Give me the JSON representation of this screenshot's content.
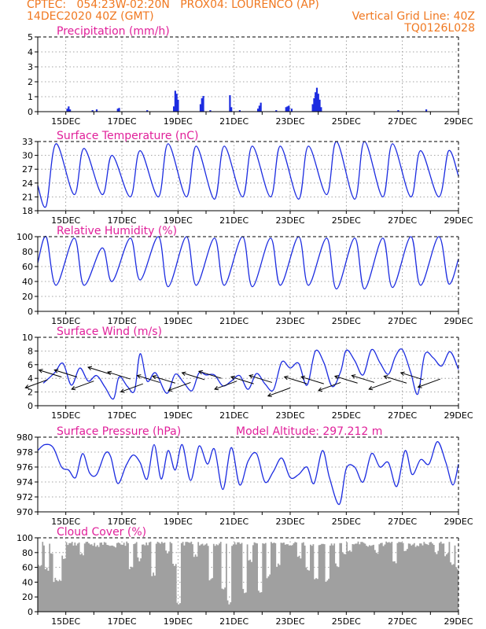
{
  "header": {
    "line1_left": "CPTEC:   054:23W-02:20N   PROX04: LOURENCO (AP)",
    "line2_left": "14DEC2020 40Z (GMT)",
    "line2_right": "Vertical Grid Line: 40Z",
    "line3_right": "TQ0126L028"
  },
  "colors": {
    "header": "#f07820",
    "panel_title": "#e0209a",
    "series": "#1c2ce0",
    "cloud": "#a0a0a0"
  },
  "x_ticks": [
    "15DEC",
    "17DEC",
    "19DEC",
    "21DEC",
    "23DEC",
    "25DEC",
    "27DEC",
    "29DEC"
  ],
  "chart_data": [
    {
      "type": "bar",
      "title": "Precipitation (mm/h)",
      "ylim": [
        0,
        5
      ],
      "yticks": [
        "0",
        "1",
        "2",
        "3",
        "4",
        "5"
      ],
      "grid": true,
      "x_unit": "days since 14DEC2020 00Z",
      "xlim": [
        0,
        15
      ],
      "points": [
        [
          1.05,
          0.2
        ],
        [
          1.1,
          0.35
        ],
        [
          1.15,
          0.15
        ],
        [
          1.95,
          0.1
        ],
        [
          2.1,
          0.15
        ],
        [
          2.85,
          0.2
        ],
        [
          2.9,
          0.25
        ],
        [
          3.9,
          0.1
        ],
        [
          4.85,
          0.35
        ],
        [
          4.9,
          1.4
        ],
        [
          4.95,
          1.2
        ],
        [
          5.0,
          0.8
        ],
        [
          5.8,
          0.5
        ],
        [
          5.85,
          0.9
        ],
        [
          5.9,
          1.05
        ],
        [
          6.15,
          0.1
        ],
        [
          6.85,
          1.1
        ],
        [
          6.9,
          0.3
        ],
        [
          7.2,
          0.1
        ],
        [
          7.85,
          0.2
        ],
        [
          7.9,
          0.4
        ],
        [
          7.95,
          0.6
        ],
        [
          8.5,
          0.1
        ],
        [
          8.85,
          0.3
        ],
        [
          8.9,
          0.35
        ],
        [
          8.95,
          0.4
        ],
        [
          9.05,
          0.2
        ],
        [
          9.8,
          0.5
        ],
        [
          9.85,
          0.9
        ],
        [
          9.9,
          1.3
        ],
        [
          9.95,
          1.6
        ],
        [
          10.0,
          1.2
        ],
        [
          10.05,
          0.8
        ],
        [
          10.1,
          0.3
        ],
        [
          12.85,
          0.1
        ],
        [
          13.85,
          0.15
        ]
      ]
    },
    {
      "type": "line",
      "title": "Surface Temperature (nC)",
      "ylim": [
        18,
        33
      ],
      "yticks": [
        "18",
        "21",
        "24",
        "27",
        "30",
        "33"
      ],
      "grid": true,
      "days_x": [
        0.65,
        1.65,
        2.65,
        3.65,
        4.65,
        5.65,
        6.65,
        7.65,
        8.65,
        9.65,
        10.65,
        11.65,
        12.65,
        13.65,
        14.65
      ],
      "days_max": [
        32.5,
        31.5,
        30,
        31,
        32.5,
        32,
        32,
        32,
        32,
        32,
        33,
        33,
        32.5,
        31,
        31
      ],
      "days_min": [
        19,
        21.5,
        21.5,
        21,
        21,
        21,
        20.5,
        21,
        21,
        20.5,
        21.5,
        20.5,
        21,
        21,
        21
      ]
    },
    {
      "type": "line",
      "title": "Relative Humidity (%)",
      "ylim": [
        0,
        100
      ],
      "yticks": [
        "0",
        "20",
        "40",
        "60",
        "80",
        "100"
      ],
      "grid": true,
      "days_x": [
        0.65,
        1.65,
        2.65,
        3.65,
        4.65,
        5.65,
        6.65,
        7.65,
        8.65,
        9.65,
        10.65,
        11.65,
        12.65,
        13.65,
        14.65
      ],
      "days_min": [
        35,
        35,
        40,
        42,
        33,
        35,
        35,
        33,
        35,
        35,
        30,
        30,
        32,
        35,
        37
      ],
      "days_max": [
        100,
        98,
        85,
        98,
        100,
        100,
        98,
        100,
        98,
        100,
        98,
        98,
        98,
        100,
        100
      ]
    },
    {
      "type": "line",
      "title": "Surface Wind (m/s)",
      "ylim": [
        0,
        10
      ],
      "yticks": [
        "0",
        "2",
        "4",
        "6",
        "8",
        "10"
      ],
      "grid": true,
      "speed": [
        [
          0.2,
          3.3
        ],
        [
          0.6,
          4.8
        ],
        [
          0.9,
          6.2
        ],
        [
          1.2,
          3.0
        ],
        [
          1.5,
          5.5
        ],
        [
          1.8,
          3.6
        ],
        [
          2.1,
          4.4
        ],
        [
          2.4,
          2.7
        ],
        [
          2.7,
          1.0
        ],
        [
          2.9,
          4.2
        ],
        [
          3.2,
          2.8
        ],
        [
          3.45,
          2.2
        ],
        [
          3.65,
          7.6
        ],
        [
          3.9,
          3.6
        ],
        [
          4.2,
          4.8
        ],
        [
          4.6,
          1.8
        ],
        [
          4.9,
          4.6
        ],
        [
          5.2,
          3.4
        ],
        [
          5.5,
          2.2
        ],
        [
          5.75,
          4.8
        ],
        [
          6.0,
          4.5
        ],
        [
          6.3,
          4.5
        ],
        [
          6.6,
          2.9
        ],
        [
          6.9,
          3.6
        ],
        [
          7.2,
          4.4
        ],
        [
          7.5,
          2.4
        ],
        [
          7.8,
          4.7
        ],
        [
          8.1,
          3.2
        ],
        [
          8.4,
          2.3
        ],
        [
          8.7,
          6.4
        ],
        [
          9.0,
          5.5
        ],
        [
          9.3,
          6.2
        ],
        [
          9.6,
          3.0
        ],
        [
          9.9,
          8.0
        ],
        [
          10.2,
          6.3
        ],
        [
          10.5,
          2.8
        ],
        [
          10.8,
          5.0
        ],
        [
          11.0,
          8.1
        ],
        [
          11.3,
          6.6
        ],
        [
          11.6,
          4.5
        ],
        [
          11.9,
          8.2
        ],
        [
          12.2,
          6.3
        ],
        [
          12.5,
          4.6
        ],
        [
          12.75,
          7.2
        ],
        [
          13.0,
          8.2
        ],
        [
          13.3,
          4.8
        ],
        [
          13.55,
          1.7
        ],
        [
          13.8,
          7.5
        ],
        [
          14.1,
          7.0
        ],
        [
          14.4,
          5.8
        ],
        [
          14.7,
          7.9
        ],
        [
          15.0,
          5.3
        ]
      ],
      "barb_x": [
        0.35,
        0.85,
        1.4,
        2.0,
        2.6,
        3.3,
        3.75,
        4.35,
        4.9,
        5.45,
        5.95,
        6.55,
        7.1,
        7.7,
        8.35,
        9.0,
        9.6,
        10.2,
        10.8,
        11.4,
        12.0,
        12.6,
        13.15,
        13.75,
        14.35
      ],
      "barb_y": [
        3.8,
        4.2,
        4.2,
        3.6,
        4.6,
        3.9,
        3.2,
        3.4,
        3.3,
        3.4,
        3.8,
        4.0,
        3.6,
        3.2,
        3.4,
        2.6,
        3.2,
        3.2,
        3.4,
        3.3,
        3.4,
        3.6,
        3.3,
        3.8,
        3.9
      ]
    },
    {
      "type": "line",
      "title": "Surface Pressure (hPa)",
      "annotation": "Model Altitude: 297.212 m",
      "ylim": [
        970,
        980
      ],
      "yticks": [
        "970",
        "972",
        "974",
        "976",
        "978",
        "980"
      ],
      "grid": true,
      "points": [
        [
          0.0,
          978.2
        ],
        [
          0.25,
          979.0
        ],
        [
          0.55,
          978.6
        ],
        [
          0.85,
          976.0
        ],
        [
          1.1,
          975.6
        ],
        [
          1.35,
          974.6
        ],
        [
          1.6,
          977.8
        ],
        [
          1.85,
          975.2
        ],
        [
          2.1,
          975.0
        ],
        [
          2.4,
          977.8
        ],
        [
          2.6,
          977.4
        ],
        [
          2.85,
          973.8
        ],
        [
          3.15,
          976.2
        ],
        [
          3.4,
          977.6
        ],
        [
          3.65,
          976.6
        ],
        [
          3.9,
          974.4
        ],
        [
          4.15,
          979.0
        ],
        [
          4.4,
          974.4
        ],
        [
          4.65,
          978.2
        ],
        [
          4.9,
          975.6
        ],
        [
          5.15,
          979.0
        ],
        [
          5.45,
          974.2
        ],
        [
          5.75,
          978.8
        ],
        [
          6.05,
          976.4
        ],
        [
          6.3,
          978.4
        ],
        [
          6.6,
          973.0
        ],
        [
          6.9,
          978.6
        ],
        [
          7.2,
          973.6
        ],
        [
          7.5,
          976.8
        ],
        [
          7.8,
          977.8
        ],
        [
          8.1,
          974.0
        ],
        [
          8.4,
          975.4
        ],
        [
          8.7,
          977.2
        ],
        [
          9.0,
          974.6
        ],
        [
          9.3,
          975.0
        ],
        [
          9.6,
          976.0
        ],
        [
          9.85,
          973.8
        ],
        [
          10.15,
          978.2
        ],
        [
          10.4,
          974.6
        ],
        [
          10.75,
          971.0
        ],
        [
          11.0,
          975.8
        ],
        [
          11.3,
          976.0
        ],
        [
          11.6,
          974.0
        ],
        [
          11.9,
          977.8
        ],
        [
          12.2,
          976.0
        ],
        [
          12.5,
          976.6
        ],
        [
          12.8,
          973.4
        ],
        [
          13.1,
          978.2
        ],
        [
          13.35,
          975.0
        ],
        [
          13.65,
          977.0
        ],
        [
          13.95,
          976.4
        ],
        [
          14.25,
          979.4
        ],
        [
          14.55,
          976.6
        ],
        [
          14.8,
          973.6
        ],
        [
          15.0,
          976.4
        ]
      ]
    },
    {
      "type": "bar",
      "title": "Cloud Cover (%)",
      "ylim": [
        0,
        100
      ],
      "yticks": [
        "0",
        "20",
        "40",
        "60",
        "80",
        "100"
      ],
      "grid": true,
      "base": 95,
      "dips": [
        [
          0.05,
          60
        ],
        [
          0.3,
          55
        ],
        [
          0.5,
          75
        ],
        [
          0.6,
          40
        ],
        [
          0.75,
          40
        ],
        [
          0.9,
          70
        ],
        [
          1.55,
          75
        ],
        [
          2.1,
          85
        ],
        [
          2.7,
          85
        ],
        [
          3.3,
          55
        ],
        [
          3.6,
          68
        ],
        [
          4.1,
          48
        ],
        [
          4.6,
          78
        ],
        [
          4.85,
          62
        ],
        [
          5.0,
          10
        ],
        [
          5.6,
          72
        ],
        [
          6.15,
          40
        ],
        [
          6.6,
          28
        ],
        [
          6.8,
          10
        ],
        [
          7.35,
          25
        ],
        [
          7.55,
          65
        ],
        [
          7.9,
          25
        ],
        [
          8.2,
          45
        ],
        [
          8.55,
          60
        ],
        [
          8.9,
          90
        ],
        [
          9.3,
          70
        ],
        [
          9.6,
          55
        ],
        [
          9.9,
          42
        ],
        [
          10.3,
          40
        ],
        [
          10.65,
          60
        ],
        [
          10.9,
          75
        ],
        [
          11.1,
          80
        ],
        [
          11.3,
          92
        ],
        [
          11.7,
          88
        ],
        [
          12.05,
          78
        ],
        [
          12.3,
          88
        ],
        [
          12.7,
          65
        ],
        [
          13.1,
          80
        ],
        [
          13.5,
          85
        ],
        [
          13.9,
          90
        ],
        [
          14.2,
          78
        ],
        [
          14.55,
          75
        ],
        [
          14.75,
          62
        ],
        [
          14.92,
          55
        ]
      ]
    }
  ]
}
